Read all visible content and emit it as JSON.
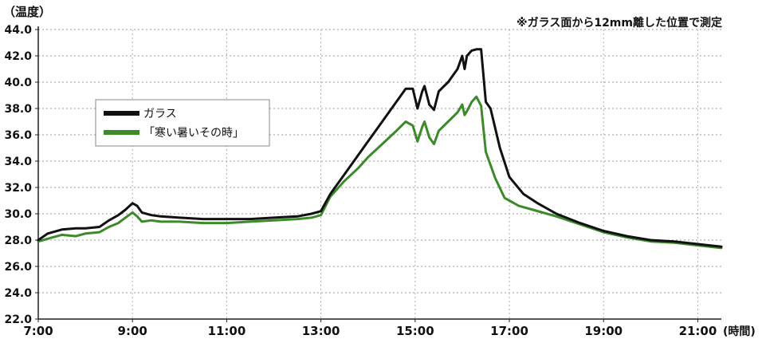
{
  "header": {
    "ylabel": "（温度）",
    "note": "※ガラス面から12mm離した位置で測定",
    "xunit": "(時間)"
  },
  "chart_data": {
    "type": "line",
    "ylabel": "（温度）",
    "xlabel": "(時間)",
    "annotation": "※ガラス面から12mm離した位置で測定",
    "xlim": [
      7,
      21.5
    ],
    "ylim": [
      22,
      44
    ],
    "x_ticks": [
      {
        "value": 7,
        "label": "7:00"
      },
      {
        "value": 9,
        "label": "9:00"
      },
      {
        "value": 11,
        "label": "11:00"
      },
      {
        "value": 13,
        "label": "13:00"
      },
      {
        "value": 15,
        "label": "15:00"
      },
      {
        "value": 17,
        "label": "17:00"
      },
      {
        "value": 19,
        "label": "19:00"
      },
      {
        "value": 21,
        "label": "21:00"
      }
    ],
    "y_ticks": [
      {
        "value": 22,
        "label": "22.0"
      },
      {
        "value": 24,
        "label": "24.0"
      },
      {
        "value": 26,
        "label": "26.0"
      },
      {
        "value": 28,
        "label": "28.0"
      },
      {
        "value": 30,
        "label": "30.0"
      },
      {
        "value": 32,
        "label": "32.0"
      },
      {
        "value": 34,
        "label": "34.0"
      },
      {
        "value": 36,
        "label": "36.0"
      },
      {
        "value": 38,
        "label": "38.0"
      },
      {
        "value": 40,
        "label": "40.0"
      },
      {
        "value": 42,
        "label": "42.0"
      },
      {
        "value": 44,
        "label": "44.0"
      }
    ],
    "grid": true,
    "legend_position": "upper-left",
    "series": [
      {
        "name": "ガラス",
        "color": "#111111",
        "points": [
          [
            7.0,
            28.0
          ],
          [
            7.2,
            28.5
          ],
          [
            7.5,
            28.8
          ],
          [
            7.8,
            28.9
          ],
          [
            8.0,
            28.9
          ],
          [
            8.3,
            29.0
          ],
          [
            8.5,
            29.5
          ],
          [
            8.7,
            29.9
          ],
          [
            8.85,
            30.3
          ],
          [
            9.0,
            30.8
          ],
          [
            9.1,
            30.6
          ],
          [
            9.2,
            30.1
          ],
          [
            9.4,
            29.9
          ],
          [
            9.6,
            29.8
          ],
          [
            10.0,
            29.7
          ],
          [
            10.5,
            29.6
          ],
          [
            11.0,
            29.6
          ],
          [
            11.5,
            29.6
          ],
          [
            12.0,
            29.7
          ],
          [
            12.5,
            29.8
          ],
          [
            12.8,
            30.0
          ],
          [
            13.0,
            30.2
          ],
          [
            13.2,
            31.5
          ],
          [
            13.5,
            33.0
          ],
          [
            13.8,
            34.5
          ],
          [
            14.0,
            35.5
          ],
          [
            14.3,
            37.0
          ],
          [
            14.6,
            38.5
          ],
          [
            14.8,
            39.5
          ],
          [
            14.95,
            39.5
          ],
          [
            15.05,
            38.0
          ],
          [
            15.15,
            39.3
          ],
          [
            15.2,
            39.7
          ],
          [
            15.3,
            38.3
          ],
          [
            15.4,
            37.9
          ],
          [
            15.5,
            39.3
          ],
          [
            15.7,
            40.0
          ],
          [
            15.9,
            41.0
          ],
          [
            16.0,
            42.0
          ],
          [
            16.05,
            41.0
          ],
          [
            16.1,
            42.0
          ],
          [
            16.2,
            42.4
          ],
          [
            16.3,
            42.5
          ],
          [
            16.4,
            42.5
          ],
          [
            16.5,
            38.5
          ],
          [
            16.6,
            38.0
          ],
          [
            16.8,
            35.0
          ],
          [
            17.0,
            32.8
          ],
          [
            17.3,
            31.5
          ],
          [
            17.6,
            30.8
          ],
          [
            18.0,
            30.0
          ],
          [
            18.5,
            29.3
          ],
          [
            19.0,
            28.7
          ],
          [
            19.5,
            28.3
          ],
          [
            20.0,
            28.0
          ],
          [
            20.5,
            27.9
          ],
          [
            21.0,
            27.7
          ],
          [
            21.5,
            27.5
          ]
        ]
      },
      {
        "name": "「寒い暑いその時」",
        "color": "#3c8a2a",
        "points": [
          [
            7.0,
            27.9
          ],
          [
            7.3,
            28.2
          ],
          [
            7.5,
            28.4
          ],
          [
            7.8,
            28.3
          ],
          [
            8.0,
            28.5
          ],
          [
            8.3,
            28.6
          ],
          [
            8.5,
            29.0
          ],
          [
            8.7,
            29.3
          ],
          [
            8.85,
            29.7
          ],
          [
            9.0,
            30.1
          ],
          [
            9.1,
            29.8
          ],
          [
            9.2,
            29.4
          ],
          [
            9.4,
            29.5
          ],
          [
            9.6,
            29.4
          ],
          [
            10.0,
            29.4
          ],
          [
            10.5,
            29.3
          ],
          [
            11.0,
            29.3
          ],
          [
            11.5,
            29.4
          ],
          [
            12.0,
            29.5
          ],
          [
            12.5,
            29.6
          ],
          [
            12.8,
            29.7
          ],
          [
            13.0,
            29.9
          ],
          [
            13.2,
            31.3
          ],
          [
            13.5,
            32.5
          ],
          [
            13.8,
            33.5
          ],
          [
            14.0,
            34.3
          ],
          [
            14.3,
            35.3
          ],
          [
            14.6,
            36.3
          ],
          [
            14.8,
            37.0
          ],
          [
            14.95,
            36.7
          ],
          [
            15.05,
            35.5
          ],
          [
            15.15,
            36.6
          ],
          [
            15.2,
            37.0
          ],
          [
            15.3,
            35.8
          ],
          [
            15.4,
            35.3
          ],
          [
            15.5,
            36.3
          ],
          [
            15.7,
            37.0
          ],
          [
            15.9,
            37.7
          ],
          [
            16.0,
            38.3
          ],
          [
            16.05,
            37.5
          ],
          [
            16.1,
            37.8
          ],
          [
            16.2,
            38.5
          ],
          [
            16.3,
            38.9
          ],
          [
            16.4,
            38.2
          ],
          [
            16.5,
            34.7
          ],
          [
            16.7,
            32.7
          ],
          [
            16.9,
            31.2
          ],
          [
            17.2,
            30.6
          ],
          [
            17.5,
            30.3
          ],
          [
            18.0,
            29.8
          ],
          [
            18.5,
            29.2
          ],
          [
            19.0,
            28.6
          ],
          [
            19.5,
            28.2
          ],
          [
            20.0,
            27.9
          ],
          [
            20.5,
            27.8
          ],
          [
            21.0,
            27.6
          ],
          [
            21.5,
            27.4
          ]
        ]
      }
    ]
  }
}
